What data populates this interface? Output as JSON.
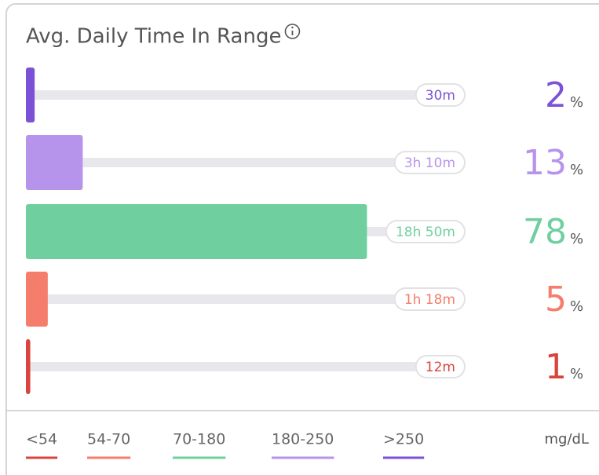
{
  "chart_data": {
    "type": "hbar",
    "title": "Avg. Daily Time In Range",
    "categories": [
      ">250",
      "180-250",
      "70-180",
      "54-70",
      "<54"
    ],
    "values": [
      2,
      13,
      78,
      5,
      1
    ],
    "percent_sign": "%",
    "durations": [
      "30m",
      "3h 10m",
      "18h 50m",
      "1h 18m",
      "12m"
    ],
    "colors": [
      "#7b52d6",
      "#b794ec",
      "#6fcf9f",
      "#f47d6b",
      "#d9453d"
    ],
    "xlim": [
      0,
      100
    ],
    "legend": [
      {
        "label": "<54",
        "color": "#d9453d"
      },
      {
        "label": "54-70",
        "color": "#f47d6b"
      },
      {
        "label": "70-180",
        "color": "#6fcf9f"
      },
      {
        "label": "180-250",
        "color": "#b794ec"
      },
      {
        "label": ">250",
        "color": "#7b52d6"
      }
    ],
    "unit": "mg/dL"
  }
}
